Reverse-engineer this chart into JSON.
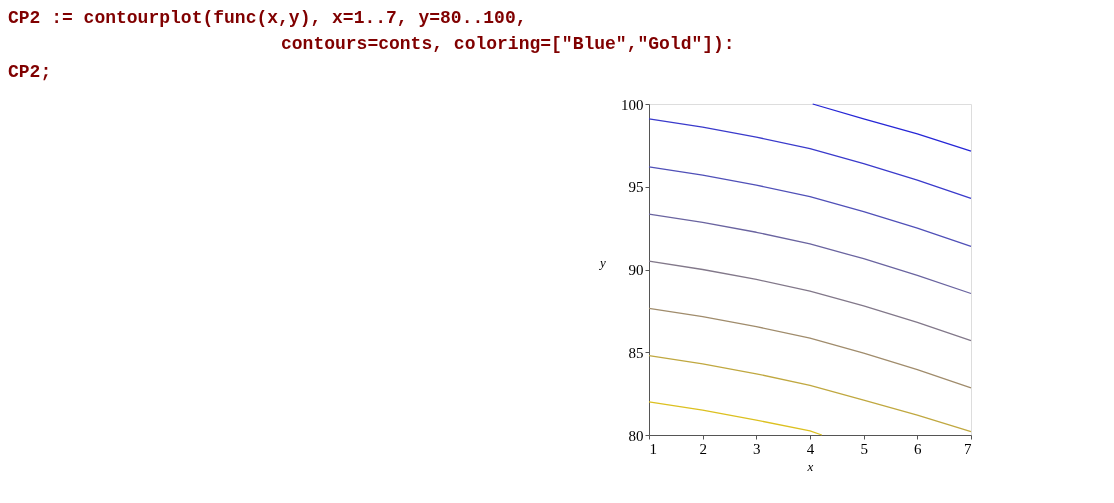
{
  "chart_data": {
    "type": "line",
    "xlabel": "x",
    "ylabel": "y",
    "annotations": [
      "CP2 := contourplot(func(x,y), x=1..7, y=80..100,",
      "contours=conts, coloring=[\"Blue\",\"Gold\"]):",
      "CP2;"
    ],
    "xlim": [
      1,
      7
    ],
    "ylim": [
      80,
      100
    ],
    "xticks": [
      1,
      2,
      3,
      4,
      5,
      6,
      7
    ],
    "yticks": [
      80,
      85,
      90,
      95,
      100
    ],
    "grid": false,
    "marker": "none",
    "line_style": "solid",
    "series": [
      {
        "color": "#2626d6",
        "x": [
          4.05,
          5,
          6,
          7
        ],
        "values": [
          100,
          99.1,
          98.2,
          97.15
        ]
      },
      {
        "color": "#3a3acb",
        "x": [
          1,
          2,
          3,
          4,
          5,
          6,
          7
        ],
        "values": [
          99.1,
          98.6,
          98.0,
          97.3,
          96.4,
          95.4,
          94.3
        ]
      },
      {
        "color": "#5050b8",
        "x": [
          1,
          2,
          3,
          4,
          5,
          6,
          7
        ],
        "values": [
          96.2,
          95.7,
          95.1,
          94.4,
          93.5,
          92.5,
          91.4
        ]
      },
      {
        "color": "#6a64a0",
        "x": [
          1,
          2,
          3,
          4,
          5,
          6,
          7
        ],
        "values": [
          93.35,
          92.85,
          92.25,
          91.55,
          90.65,
          89.65,
          88.55
        ]
      },
      {
        "color": "#82788a",
        "x": [
          1,
          2,
          3,
          4,
          5,
          6,
          7
        ],
        "values": [
          90.5,
          90.0,
          89.4,
          88.7,
          87.8,
          86.8,
          85.7
        ]
      },
      {
        "color": "#a08c6c",
        "x": [
          1,
          2,
          3,
          4,
          5,
          6,
          7
        ],
        "values": [
          87.65,
          87.15,
          86.55,
          85.85,
          84.95,
          83.95,
          82.85
        ]
      },
      {
        "color": "#c0a840",
        "x": [
          1,
          2,
          3,
          4,
          5,
          6,
          7
        ],
        "values": [
          84.8,
          84.3,
          83.7,
          83.0,
          82.1,
          81.2,
          80.2
        ]
      },
      {
        "color": "#dcc020",
        "x": [
          1,
          2,
          3,
          4,
          4.22
        ],
        "values": [
          82.0,
          81.5,
          80.9,
          80.25,
          80.0
        ]
      }
    ]
  }
}
